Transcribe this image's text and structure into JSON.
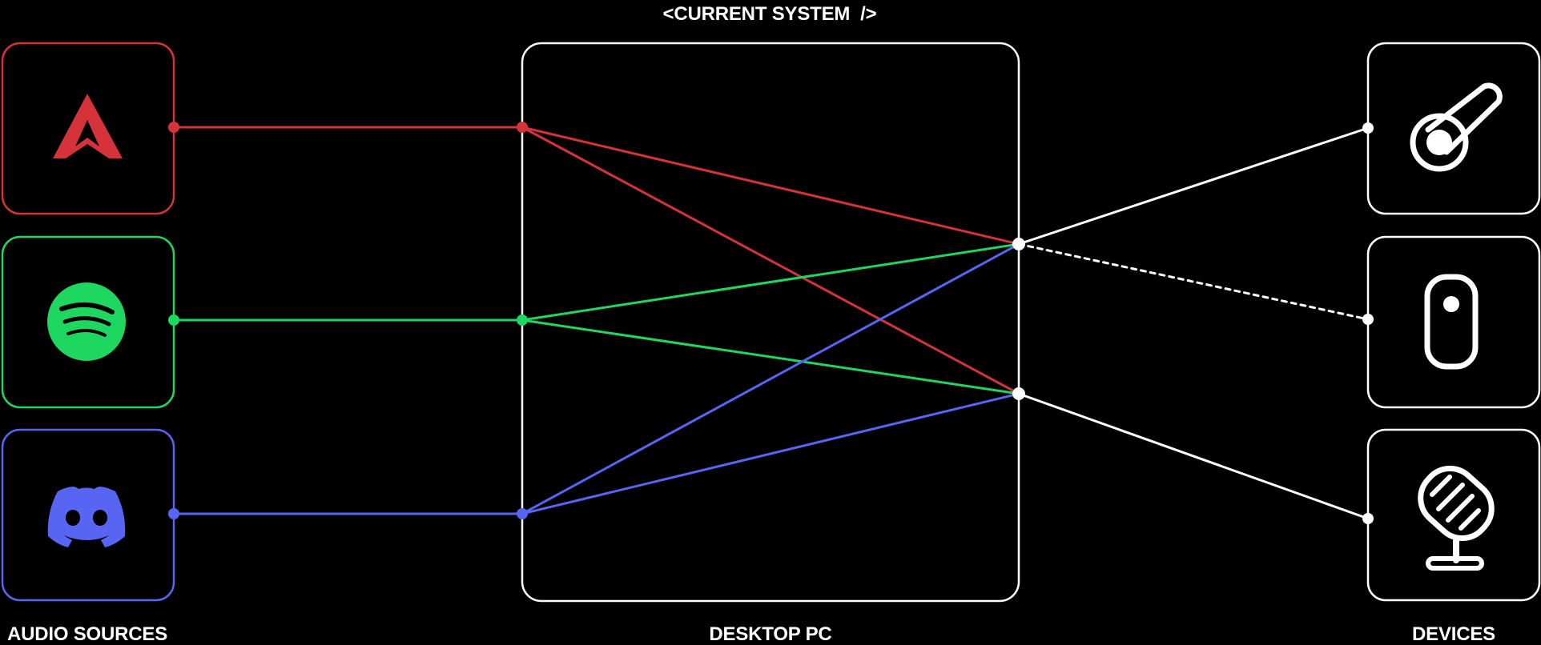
{
  "title": "<CURRENT SYSTEM  />",
  "labels": {
    "sources": "AUDIO SOURCES",
    "hub": "DESKTOP PC",
    "devices": "DEVICES"
  },
  "colors": {
    "background": "#000000",
    "apex": "#d6323a",
    "spotify": "#1ed760",
    "discord": "#5865f2",
    "white": "#ffffff"
  },
  "sources": [
    {
      "name": "Apex Legends",
      "icon": "apex-legends-logo-icon",
      "color": "#d6323a"
    },
    {
      "name": "Spotify",
      "icon": "spotify-logo-icon",
      "color": "#1ed760"
    },
    {
      "name": "Discord",
      "icon": "discord-logo-icon",
      "color": "#5865f2"
    }
  ],
  "devices": [
    {
      "name": "headphone jack",
      "icon": "headphone-jack-icon"
    },
    {
      "name": "remote",
      "icon": "remote-control-icon",
      "link": "dashed"
    },
    {
      "name": "microphone",
      "icon": "microphone-icon"
    }
  ],
  "routing": {
    "output_a": [
      "Apex Legends",
      "Spotify",
      "Discord"
    ],
    "output_b": [
      "Apex Legends",
      "Spotify",
      "Discord"
    ]
  }
}
